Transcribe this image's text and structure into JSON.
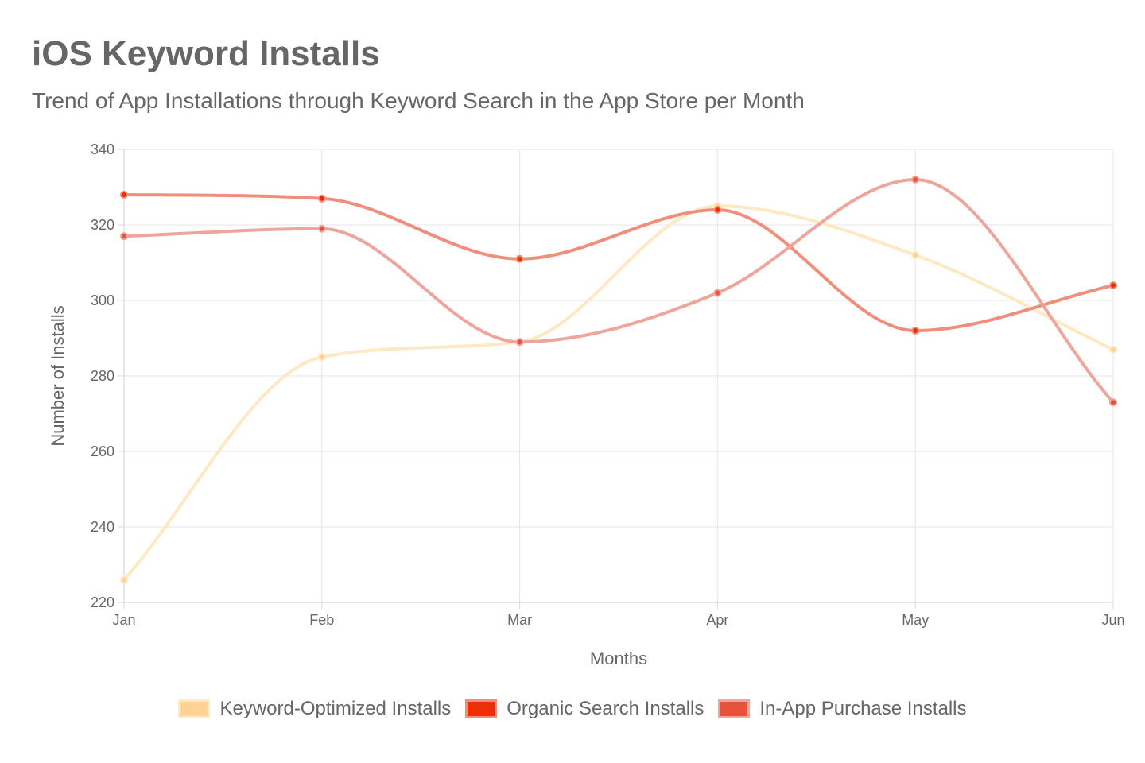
{
  "title": "iOS Keyword Installs",
  "subtitle": "Trend of App Installations through Keyword Search in the App Store per Month",
  "chart_data": {
    "type": "line",
    "xlabel": "Months",
    "ylabel": "Number of Installs",
    "categories": [
      "Jan",
      "Feb",
      "Mar",
      "Apr",
      "May",
      "Jun"
    ],
    "ylim": [
      220,
      340
    ],
    "yticks": [
      220,
      240,
      260,
      280,
      300,
      320,
      340
    ],
    "grid": true,
    "legend_position": "bottom",
    "series": [
      {
        "name": "Keyword-Optimized Installs",
        "values": [
          226,
          285,
          289,
          325,
          312,
          287
        ],
        "color": "#fdd293",
        "line_color": "#fde9c4"
      },
      {
        "name": "Organic Search Installs",
        "values": [
          328,
          327,
          311,
          324,
          292,
          304
        ],
        "color": "#ee2e05",
        "line_color": "#f08e7c"
      },
      {
        "name": "In-App Purchase Installs",
        "values": [
          317,
          319,
          289,
          302,
          332,
          273
        ],
        "color": "#e8523c",
        "line_color": "#eea69c"
      }
    ]
  }
}
